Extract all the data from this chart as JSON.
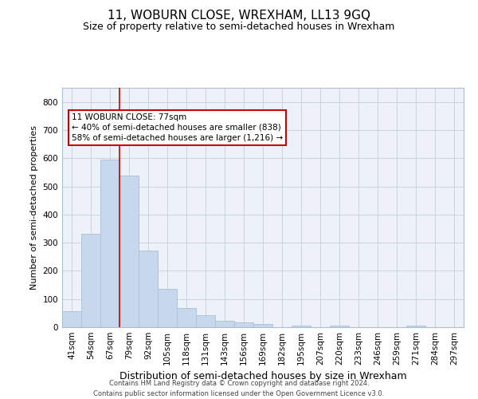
{
  "title": "11, WOBURN CLOSE, WREXHAM, LL13 9GQ",
  "subtitle": "Size of property relative to semi-detached houses in Wrexham",
  "xlabel": "Distribution of semi-detached houses by size in Wrexham",
  "ylabel": "Number of semi-detached properties",
  "footnote": "Contains HM Land Registry data © Crown copyright and database right 2024.\nContains public sector information licensed under the Open Government Licence v3.0.",
  "categories": [
    "41sqm",
    "54sqm",
    "67sqm",
    "79sqm",
    "92sqm",
    "105sqm",
    "118sqm",
    "131sqm",
    "143sqm",
    "156sqm",
    "169sqm",
    "182sqm",
    "195sqm",
    "207sqm",
    "220sqm",
    "233sqm",
    "246sqm",
    "259sqm",
    "271sqm",
    "284sqm",
    "297sqm"
  ],
  "values": [
    57,
    332,
    595,
    538,
    272,
    135,
    67,
    42,
    22,
    17,
    12,
    0,
    7,
    0,
    7,
    0,
    0,
    0,
    7,
    0,
    0
  ],
  "bar_color": "#c8d8ec",
  "bar_edgecolor": "#a8c0d8",
  "property_label": "11 WOBURN CLOSE: 77sqm",
  "pct_smaller": 40,
  "n_smaller": 838,
  "pct_larger": 58,
  "n_larger": 1216,
  "vline_color": "#cc0000",
  "annotation_box_edgecolor": "#cc0000",
  "vline_bin_index": 3,
  "ylim": [
    0,
    850
  ],
  "yticks": [
    0,
    100,
    200,
    300,
    400,
    500,
    600,
    700,
    800
  ],
  "grid_color": "#c8d4e0",
  "bg_color": "#eef2f8",
  "title_fontsize": 11,
  "subtitle_fontsize": 9,
  "xlabel_fontsize": 9,
  "ylabel_fontsize": 8,
  "tick_fontsize": 7.5,
  "footnote_fontsize": 6,
  "annotation_fontsize": 7.5
}
